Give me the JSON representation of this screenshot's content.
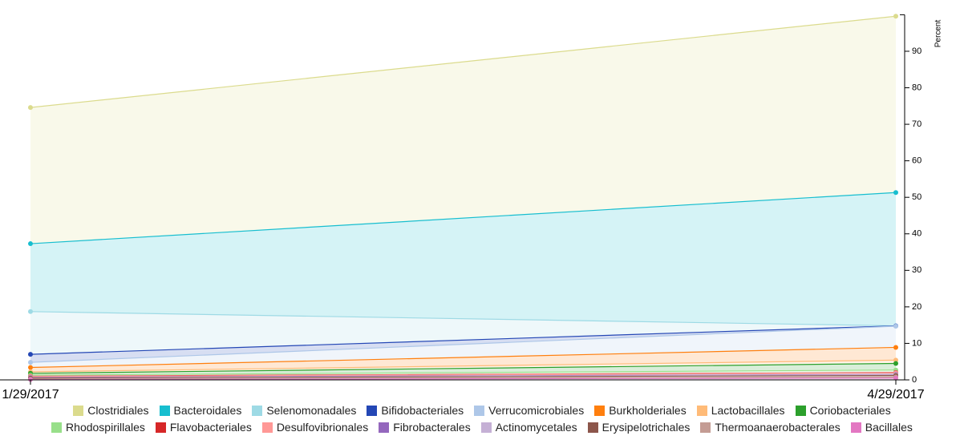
{
  "chart_data": {
    "type": "stacked-area",
    "y_label": "Percent",
    "categories": [
      "1/29/2017",
      "4/29/2017"
    ],
    "ylim": [
      0,
      100
    ],
    "yticks": [
      0,
      10,
      20,
      30,
      40,
      50,
      60,
      70,
      80,
      90
    ],
    "series": [
      {
        "name": "Clostridiales",
        "color": "#dbdb8d",
        "values": [
          37.3,
          48.3
        ]
      },
      {
        "name": "Bacteroidales",
        "color": "#17becf",
        "values": [
          18.6,
          36.5
        ]
      },
      {
        "name": "Selenomonadales",
        "color": "#9edae5",
        "values": [
          11.7,
          0.0
        ]
      },
      {
        "name": "Bifidobacteriales",
        "color": "#2447b5",
        "values": [
          2.2,
          0.1
        ]
      },
      {
        "name": "Verrucomicrobiales",
        "color": "#aec7e8",
        "values": [
          1.4,
          5.8
        ]
      },
      {
        "name": "Burkholderiales",
        "color": "#ff7f0e",
        "values": [
          1.2,
          3.5
        ]
      },
      {
        "name": "Lactobacillales",
        "color": "#ffbb78",
        "values": [
          0.4,
          0.9
        ]
      },
      {
        "name": "Coriobacteriales",
        "color": "#2ca02c",
        "values": [
          0.5,
          1.8
        ]
      },
      {
        "name": "Rhodospirillales",
        "color": "#98df8a",
        "values": [
          0.3,
          0.7
        ]
      },
      {
        "name": "Flavobacteriales",
        "color": "#d62728",
        "values": [
          0.1,
          0.1
        ]
      },
      {
        "name": "Desulfovibrionales",
        "color": "#ff9896",
        "values": [
          0.2,
          0.4
        ]
      },
      {
        "name": "Fibrobacterales",
        "color": "#9467bd",
        "values": [
          0.1,
          0.1
        ]
      },
      {
        "name": "Actinomycetales",
        "color": "#c5b0d5",
        "values": [
          0.1,
          0.2
        ]
      },
      {
        "name": "Erysipelotrichales",
        "color": "#8c564b",
        "values": [
          0.3,
          0.4
        ]
      },
      {
        "name": "Thermoanaerobacterales",
        "color": "#c49c94",
        "values": [
          0.1,
          0.3
        ]
      },
      {
        "name": "Bacillales",
        "color": "#e377c2",
        "values": [
          0.1,
          0.5
        ]
      }
    ]
  }
}
